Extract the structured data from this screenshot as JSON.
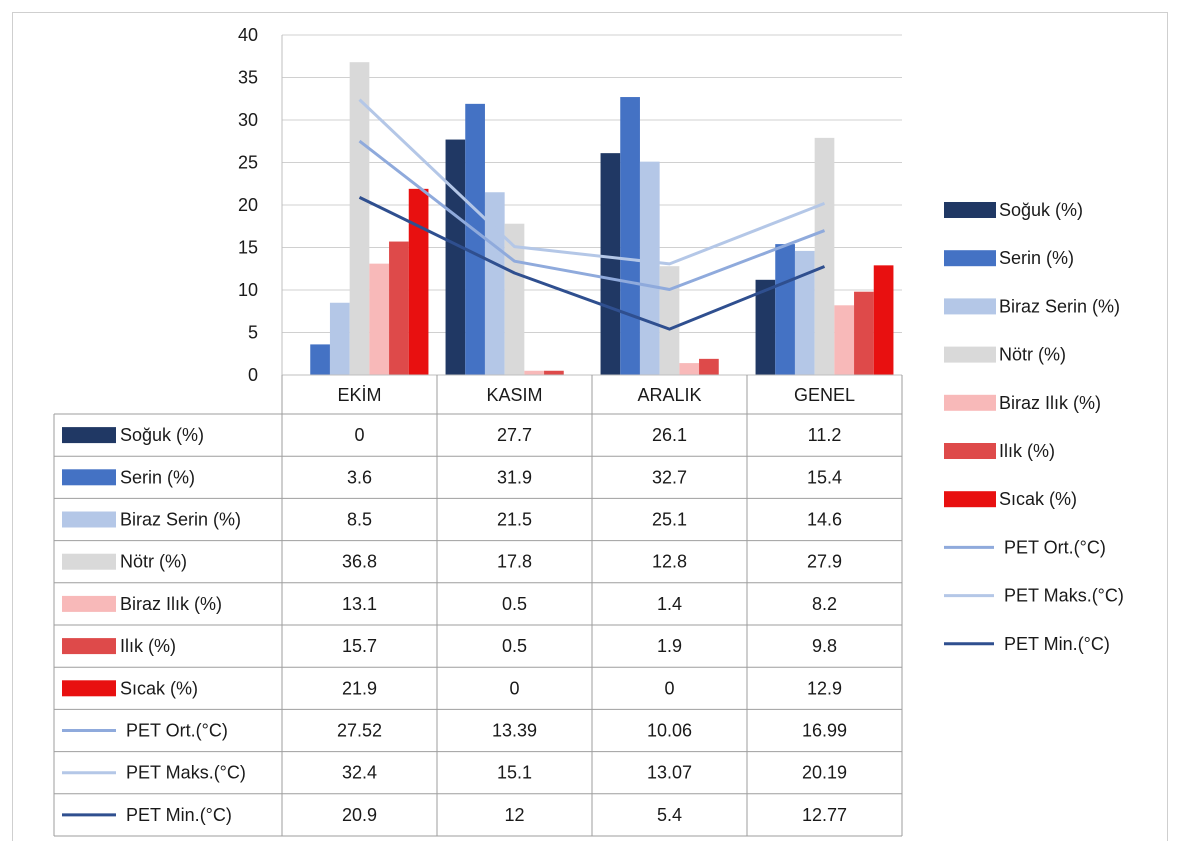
{
  "chart_data": {
    "type": "bar",
    "title": "",
    "xlabel": "",
    "ylabel": "",
    "ylim": [
      0,
      40
    ],
    "yticks": [
      0,
      5,
      10,
      15,
      20,
      25,
      30,
      35,
      40
    ],
    "grid": true,
    "legend_position": "right",
    "data_table": true,
    "categories": [
      "EKİM",
      "KASIM",
      "ARALIK",
      "GENEL"
    ],
    "series": [
      {
        "name": "Soğuk (%)",
        "kind": "bar",
        "color": "#203864",
        "values": [
          0,
          27.7,
          26.1,
          11.2
        ],
        "labels": [
          "0",
          "27.7",
          "26.1",
          "11.2"
        ]
      },
      {
        "name": "Serin (%)",
        "kind": "bar",
        "color": "#4472c4",
        "values": [
          3.6,
          31.9,
          32.7,
          15.4
        ],
        "labels": [
          "3.6",
          "31.9",
          "32.7",
          "15.4"
        ]
      },
      {
        "name": "Biraz Serin (%)",
        "kind": "bar",
        "color": "#b4c7e7",
        "values": [
          8.5,
          21.5,
          25.1,
          14.6
        ],
        "labels": [
          "8.5",
          "21.5",
          "25.1",
          "14.6"
        ]
      },
      {
        "name": "Nötr (%)",
        "kind": "bar",
        "color": "#d9d9d9",
        "values": [
          36.8,
          17.8,
          12.8,
          27.9
        ],
        "labels": [
          "36.8",
          "17.8",
          "12.8",
          "27.9"
        ]
      },
      {
        "name": "Biraz Ilık (%)",
        "kind": "bar",
        "color": "#f8b9b9",
        "values": [
          13.1,
          0.5,
          1.4,
          8.2
        ],
        "labels": [
          "13.1",
          "0.5",
          "1.4",
          "8.2"
        ]
      },
      {
        "name": "Ilık (%)",
        "kind": "bar",
        "color": "#de4a4a",
        "values": [
          15.7,
          0.5,
          1.9,
          9.8
        ],
        "labels": [
          "15.7",
          "0.5",
          "1.9",
          "9.8"
        ]
      },
      {
        "name": "Sıcak (%)",
        "kind": "bar",
        "color": "#e81010",
        "values": [
          21.9,
          0,
          0,
          12.9
        ],
        "labels": [
          "21.9",
          "0",
          "0",
          "12.9"
        ]
      },
      {
        "name": "PET Ort.(°C)",
        "kind": "line",
        "color": "#8faadc",
        "values": [
          27.52,
          13.39,
          10.06,
          16.99
        ],
        "labels": [
          "27.52",
          "13.39",
          "10.06",
          "16.99"
        ]
      },
      {
        "name": "PET Maks.(°C)",
        "kind": "line",
        "color": "#b4c7e7",
        "values": [
          32.4,
          15.1,
          13.07,
          20.19
        ],
        "labels": [
          "32.4",
          "15.1",
          "13.07",
          "20.19"
        ]
      },
      {
        "name": "PET Min.(°C)",
        "kind": "line",
        "color": "#2f4f8f",
        "values": [
          20.9,
          12,
          5.4,
          12.77
        ],
        "labels": [
          "20.9",
          "12",
          "5.4",
          "12.77"
        ]
      }
    ]
  }
}
